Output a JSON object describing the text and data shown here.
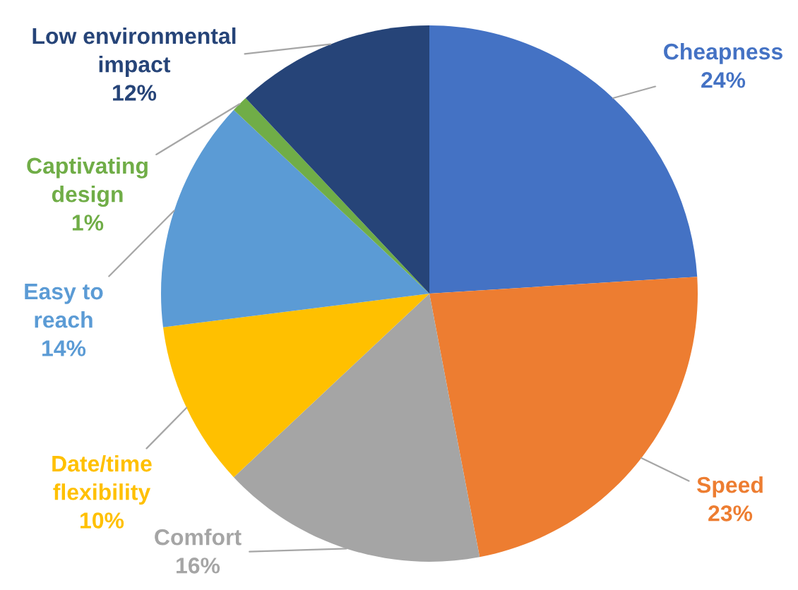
{
  "chart_data": {
    "type": "pie",
    "categories": [
      "Cheapness",
      "Speed",
      "Comfort",
      "Date/time\nflexibility",
      "Easy to\nreach",
      "Captivating\ndesign",
      "Low environmental\nimpact"
    ],
    "values": [
      24,
      23,
      16,
      10,
      14,
      1,
      12
    ],
    "colors": [
      "#4472c4",
      "#ed7d31",
      "#a5a5a5",
      "#ffc000",
      "#5b9bd5",
      "#70ad47",
      "#264478"
    ],
    "value_labels": [
      "24%",
      "23%",
      "16%",
      "10%",
      "14%",
      "1%",
      "12%"
    ]
  }
}
